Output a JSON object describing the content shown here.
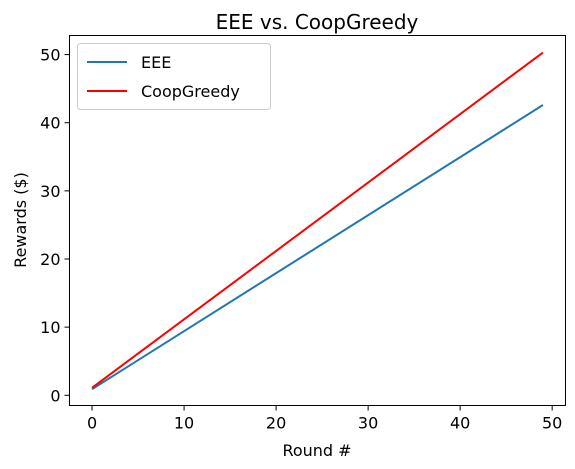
{
  "chart_data": {
    "type": "line",
    "title": "EEE vs. CoopGreedy",
    "xlabel": "Round #",
    "ylabel": "Rewards ($)",
    "xlim": [
      -2.45,
      51.45
    ],
    "ylim": [
      -1.5,
      52.8
    ],
    "xticks": [
      0,
      10,
      20,
      30,
      40,
      50
    ],
    "yticks": [
      0,
      10,
      20,
      30,
      40,
      50
    ],
    "grid": false,
    "legend_position": "upper-left",
    "x": [
      0,
      49
    ],
    "series": [
      {
        "name": "EEE",
        "color": "#1f77b4",
        "values": [
          0.9,
          42.6
        ]
      },
      {
        "name": "CoopGreedy",
        "color": "#ff0000",
        "values": [
          1.1,
          50.3
        ]
      }
    ]
  }
}
